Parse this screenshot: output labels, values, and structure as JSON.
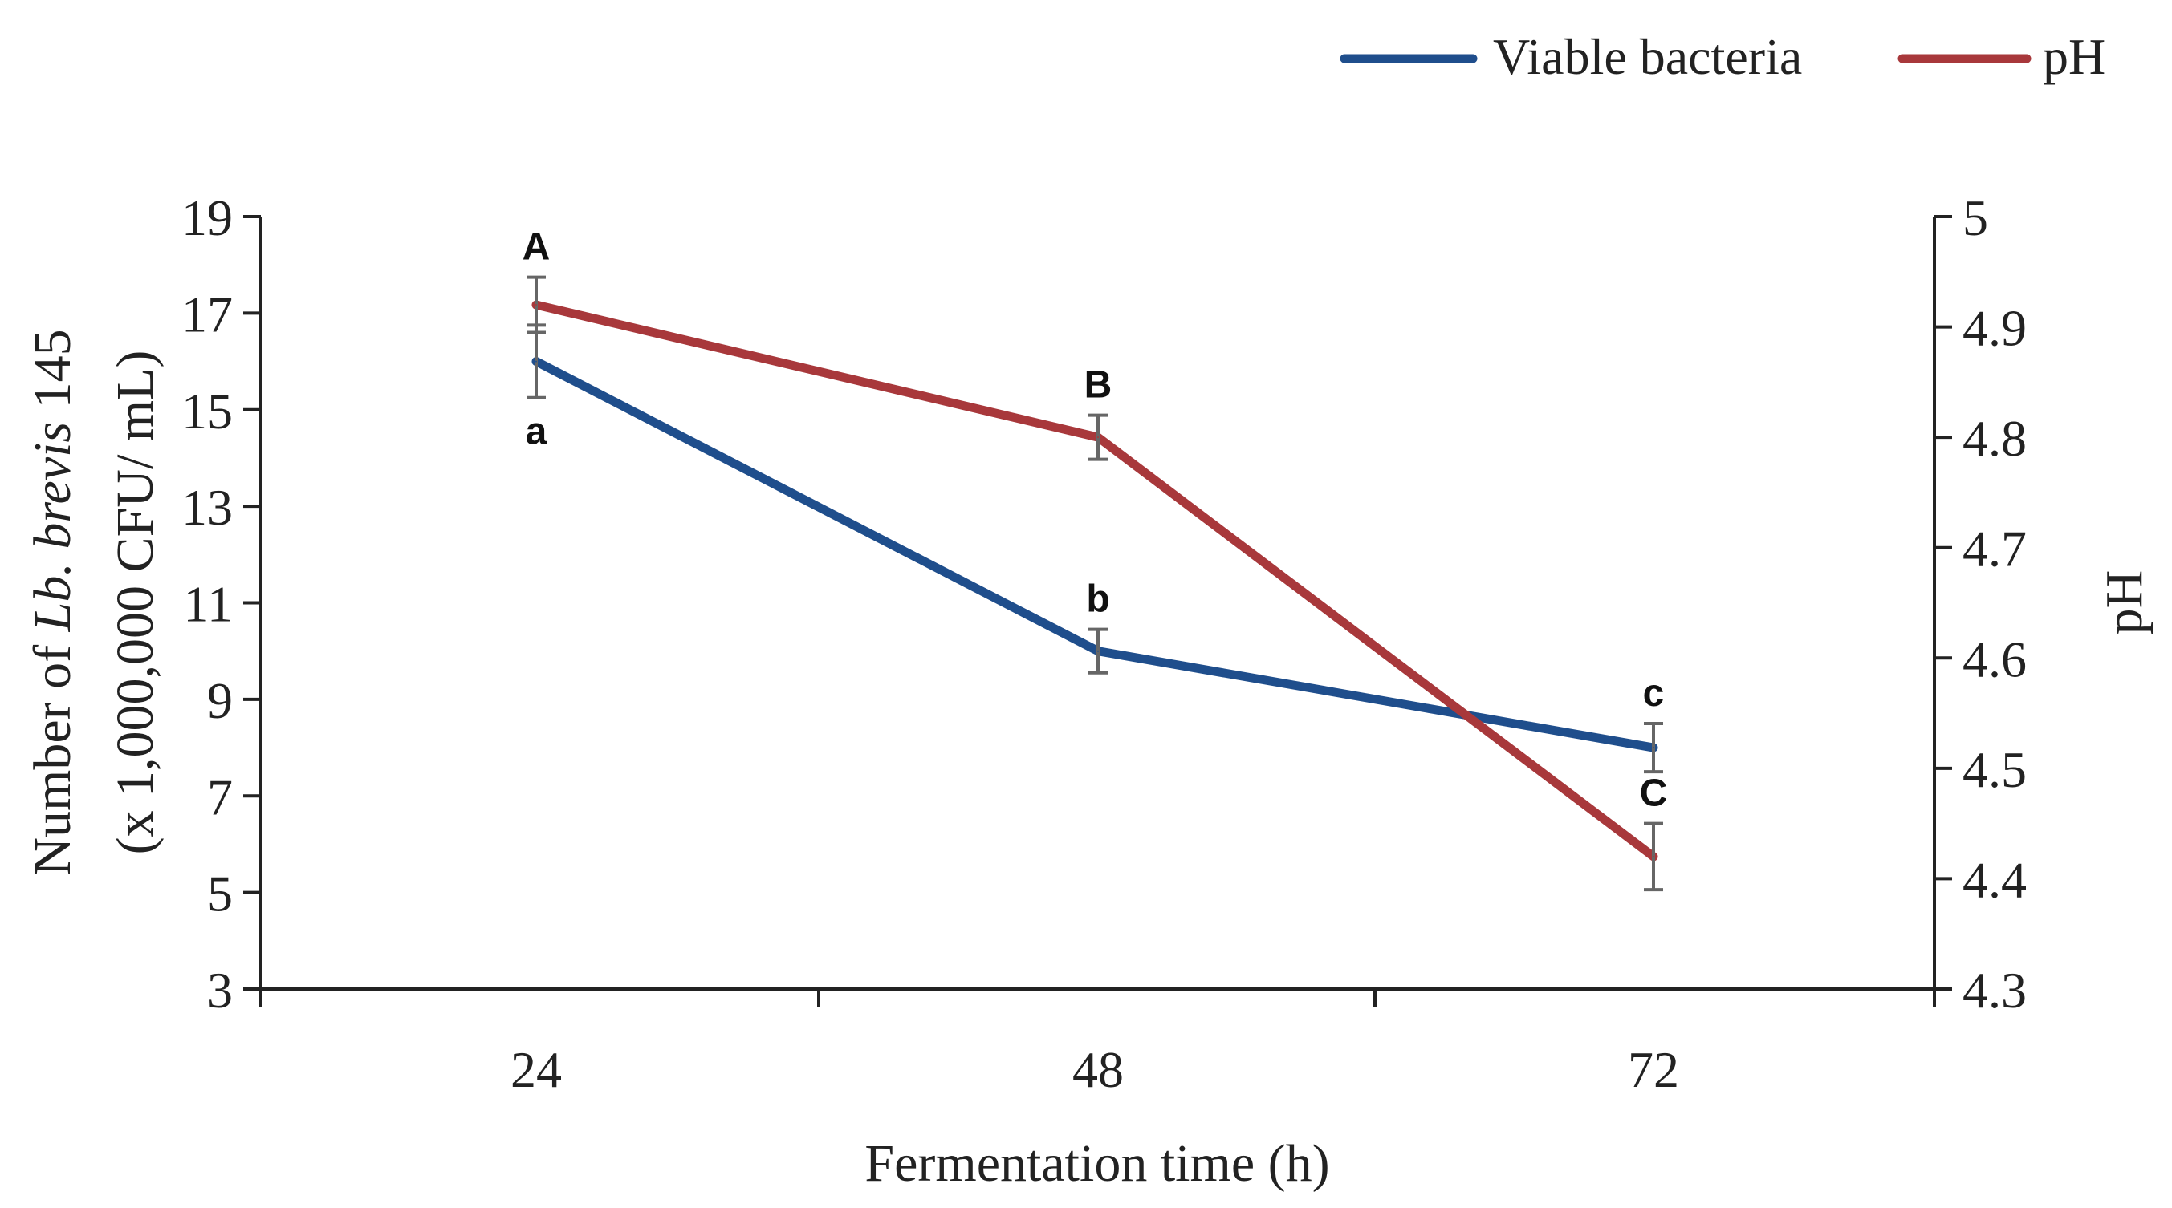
{
  "chart_data": {
    "type": "line",
    "xlabel": "Fermentation time (h)",
    "ylabel_left_parts": [
      "Number of ",
      "Lb. brevis",
      " 145"
    ],
    "ylabel_left_line2": "(x 1,000,000 CFU/ mL)",
    "ylabel_right": "pH",
    "categories": [
      "24",
      "48",
      "72"
    ],
    "y_left": {
      "min": 3,
      "max": 19,
      "ticks": [
        "3",
        "5",
        "7",
        "9",
        "11",
        "13",
        "15",
        "17",
        "19"
      ]
    },
    "y_right": {
      "min": 4.3,
      "max": 5.0,
      "ticks": [
        "4.3",
        "4.4",
        "4.5",
        "4.6",
        "4.7",
        "4.8",
        "4.9",
        "5"
      ]
    },
    "legend": [
      "Viable bacteria",
      "pH"
    ],
    "legend_position": "top-right",
    "series": [
      {
        "name": "Viable bacteria",
        "axis": "left",
        "color": "#1f4e8c",
        "values": [
          16.0,
          10.0,
          8.0
        ],
        "errors": [
          0.75,
          0.45,
          0.5
        ],
        "letters": [
          "a",
          "b",
          "c"
        ],
        "letter_position": "below-above"
      },
      {
        "name": "pH",
        "axis": "right",
        "color": "#a8383b",
        "values": [
          4.92,
          4.8,
          4.42
        ],
        "errors": [
          0.025,
          0.02,
          0.03
        ],
        "letters": [
          "A",
          "B",
          "C"
        ]
      }
    ]
  }
}
